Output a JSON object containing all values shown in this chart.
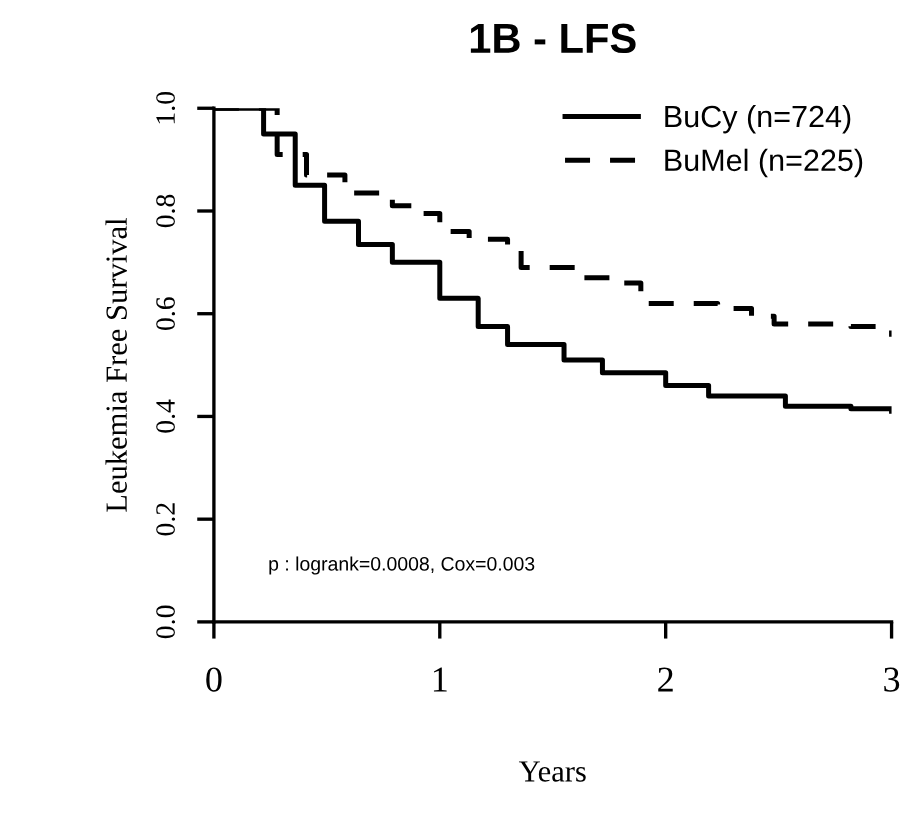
{
  "chart_data": {
    "type": "step",
    "title": "1B - LFS",
    "xlabel": "Years",
    "ylabel": "Leukemia Free Survival",
    "xlim": [
      0,
      3
    ],
    "ylim": [
      0,
      1
    ],
    "xticks": [
      0,
      1,
      2,
      3
    ],
    "yticks": [
      {
        "value": 0,
        "label": "0.0"
      },
      0.2,
      0.4,
      0.6,
      0.8,
      {
        "value": 1,
        "label": "1.0"
      }
    ],
    "legend": "top right",
    "marker": "none",
    "annotations": [
      "p : logrank=0.0008, Cox=0.003"
    ],
    "series": [
      {
        "name": "BuCy (n=724)",
        "color": "#000000",
        "line_style": "solid",
        "x": [
          0,
          0.11,
          0.22,
          0.36,
          0.49,
          0.64,
          0.79,
          1.0,
          1.17,
          1.3,
          1.55,
          1.72,
          2.0,
          2.19,
          2.53,
          2.82,
          3.0
        ],
        "values": [
          1.0,
          1.0,
          0.95,
          0.85,
          0.78,
          0.735,
          0.7,
          0.63,
          0.575,
          0.54,
          0.51,
          0.485,
          0.46,
          0.44,
          0.42,
          0.415,
          0.41
        ]
      },
      {
        "name": "BuMel (n=225)",
        "color": "#000000",
        "line_style": "dashed",
        "x": [
          0,
          0.11,
          0.28,
          0.41,
          0.58,
          0.79,
          0.92,
          1.0,
          1.13,
          1.3,
          1.36,
          1.64,
          1.79,
          1.89,
          2.23,
          2.38,
          2.48,
          2.82,
          3.0
        ],
        "values": [
          1.0,
          1.0,
          0.91,
          0.87,
          0.835,
          0.81,
          0.795,
          0.76,
          0.745,
          0.73,
          0.69,
          0.67,
          0.66,
          0.62,
          0.61,
          0.595,
          0.58,
          0.575,
          0.555
        ]
      }
    ]
  }
}
